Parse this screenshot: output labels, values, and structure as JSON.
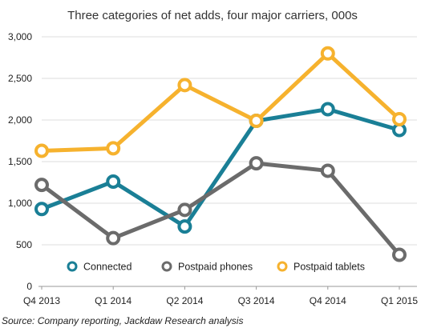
{
  "chart_data": {
    "type": "line",
    "title": "Three categories of net adds, four major carriers, 000s",
    "categories": [
      "Q4 2013",
      "Q1 2014",
      "Q2 2014",
      "Q3 2014",
      "Q4 2014",
      "Q1 2015"
    ],
    "series": [
      {
        "name": "Connected",
        "color": "#1a7f96",
        "values": [
          930,
          1260,
          720,
          1990,
          2130,
          1880
        ]
      },
      {
        "name": "Postpaid phones",
        "color": "#6b6b6b",
        "values": [
          1220,
          580,
          920,
          1480,
          1390,
          380
        ]
      },
      {
        "name": "Postpaid tablets",
        "color": "#f6b22e",
        "values": [
          1630,
          1660,
          2420,
          1990,
          2800,
          2010
        ]
      }
    ],
    "ylim": [
      0,
      3000
    ],
    "yticks": [
      "0",
      "500",
      "1,000",
      "1,500",
      "2,000",
      "2,500",
      "3,000"
    ],
    "ytick_values": [
      0,
      500,
      1000,
      1500,
      2000,
      2500,
      3000
    ],
    "grid": true,
    "legend_position": "bottom-inside",
    "source": "Source: Company reporting, Jackdaw Research analysis"
  }
}
